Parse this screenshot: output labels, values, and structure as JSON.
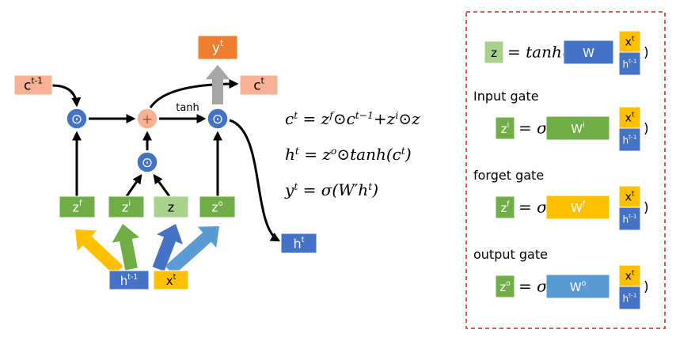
{
  "diagram": {
    "nodes": [
      {
        "base": "c",
        "sup": "t-1"
      },
      {
        "base": "y",
        "sup": "t"
      },
      {
        "base": "c",
        "sup": "t"
      },
      {
        "base": "z",
        "sup": "f"
      },
      {
        "base": "z",
        "sup": "i"
      },
      {
        "base": "z"
      },
      {
        "base": "z",
        "sup": "o"
      },
      {
        "base": "h",
        "sup": "t"
      },
      {
        "base": "h",
        "sup": "t-1"
      },
      {
        "base": "x",
        "sup": "t"
      }
    ],
    "operators": [
      "⊙",
      "+",
      "⊙",
      "⊙"
    ],
    "tanh_label": "tanh"
  },
  "equations": [
    [
      {
        "base": "c",
        "sup": "t"
      },
      {
        "text": " = "
      },
      {
        "base": "z",
        "sup": "f"
      },
      {
        "text": "⊙"
      },
      {
        "base": "c",
        "sup": "t−1"
      },
      {
        "text": "+"
      },
      {
        "base": "z",
        "sup": "i"
      },
      {
        "text": "⊙z"
      }
    ],
    [
      {
        "base": "h",
        "sup": "t"
      },
      {
        "text": " = "
      },
      {
        "base": "z",
        "sup": "o"
      },
      {
        "text": "⊙tanh("
      },
      {
        "base": "c",
        "sup": "t"
      },
      {
        "text": ")"
      }
    ],
    [
      {
        "base": "y",
        "sup": "t"
      },
      {
        "text": " = σ(W′"
      },
      {
        "base": "h",
        "sup": "t"
      },
      {
        "text": ")"
      }
    ]
  ],
  "gates_panel": {
    "rows": [
      {
        "gate": {
          "base": "z"
        },
        "open": "= tanh(",
        "weight": {
          "base": "W"
        },
        "inputs": [
          {
            "base": "x",
            "sup": "t"
          },
          {
            "base": "h",
            "sup": "t-1"
          }
        ],
        "close": ")"
      },
      {
        "title": "Input gate",
        "gate": {
          "base": "z",
          "sup": "i"
        },
        "open": "= σ(",
        "weight": {
          "base": "W",
          "sup": "i"
        },
        "inputs": [
          {
            "base": "x",
            "sup": "t"
          },
          {
            "base": "h",
            "sup": "t-1"
          }
        ],
        "close": ")"
      },
      {
        "title": "forget gate",
        "gate": {
          "base": "z",
          "sup": "f"
        },
        "open": "= σ(",
        "weight": {
          "base": "W",
          "sup": "f"
        },
        "inputs": [
          {
            "base": "x",
            "sup": "t"
          },
          {
            "base": "h",
            "sup": "t-1"
          }
        ],
        "close": ")"
      },
      {
        "title": "output gate",
        "gate": {
          "base": "z",
          "sup": "o"
        },
        "open": "= σ(",
        "weight": {
          "base": "W",
          "sup": "o"
        },
        "inputs": [
          {
            "base": "x",
            "sup": "t"
          },
          {
            "base": "h",
            "sup": "t-1"
          }
        ],
        "close": ")"
      }
    ]
  }
}
